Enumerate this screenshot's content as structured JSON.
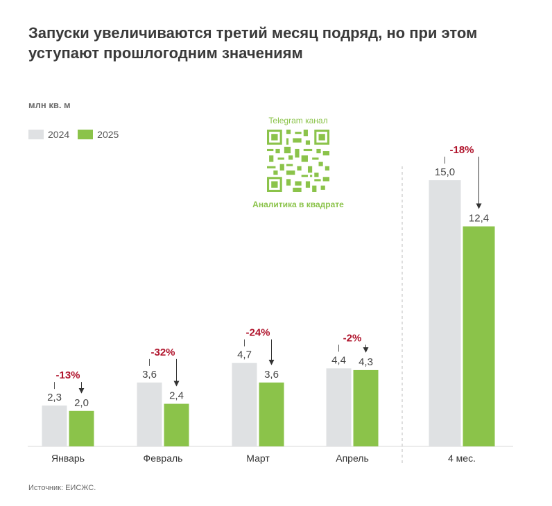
{
  "title": "Запуски увеличиваются третий месяц подряд, но при этом уступают прошлогодним значениям",
  "unit_label": "млн кв. м",
  "legend": [
    {
      "label": "2024",
      "color": "#dfe1e3"
    },
    {
      "label": "2025",
      "color": "#8bc34a"
    }
  ],
  "watermark": {
    "caption": "Telegram канал",
    "footer": "Аналитика в квадрате",
    "color": "#8bc34a"
  },
  "source": "Источник: ЕИСЖС.",
  "chart_data": {
    "type": "bar",
    "title": "Запуски увеличиваются третий месяц подряд, но при этом уступают прошлогодним значениям",
    "ylabel": "млн кв. м",
    "ylim": [
      0,
      16
    ],
    "categories": [
      "Январь",
      "Февраль",
      "Март",
      "Апрель",
      "4 мес."
    ],
    "series": [
      {
        "name": "2024",
        "color": "#dfe1e3",
        "values": [
          2.3,
          3.6,
          4.7,
          4.4,
          15.0
        ],
        "labels": [
          "2,3",
          "3,6",
          "4,7",
          "4,4",
          "15,0"
        ]
      },
      {
        "name": "2025",
        "color": "#8bc34a",
        "values": [
          2.0,
          2.4,
          3.6,
          4.3,
          12.4
        ],
        "labels": [
          "2,0",
          "2,4",
          "3,6",
          "4,3",
          "12,4"
        ]
      }
    ],
    "changes": [
      "-13%",
      "-32%",
      "-24%",
      "-2%",
      "-18%"
    ],
    "change_color": "#b0142c"
  }
}
